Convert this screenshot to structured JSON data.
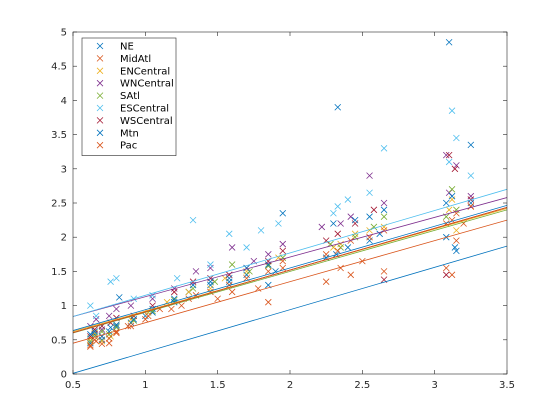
{
  "chart_data": {
    "type": "scatter",
    "title": "",
    "xlabel": "",
    "ylabel": "",
    "xlim": [
      0.5,
      3.5
    ],
    "ylim": [
      0,
      5
    ],
    "xticks": [
      0.5,
      1,
      1.5,
      2,
      2.5,
      3,
      3.5
    ],
    "yticks": [
      0,
      0.5,
      1,
      1.5,
      2,
      2.5,
      3,
      3.5,
      4,
      4.5,
      5
    ],
    "xtick_labels": [
      "0.5",
      "1",
      "1.5",
      "2",
      "2.5",
      "3",
      "3.5"
    ],
    "ytick_labels": [
      "0",
      "0.5",
      "1",
      "1.5",
      "2",
      "2.5",
      "3",
      "3.5",
      "4",
      "4.5",
      "5"
    ],
    "grid": false,
    "legend_position": "top-left",
    "marker": "x",
    "series": [
      {
        "name": "NE",
        "color": "#0072BD",
        "points": [
          [
            0.62,
            0.45
          ],
          [
            0.65,
            0.58
          ],
          [
            0.7,
            0.5
          ],
          [
            0.75,
            0.62
          ],
          [
            0.8,
            0.7
          ],
          [
            0.82,
            1.12
          ],
          [
            0.9,
            0.75
          ],
          [
            1.0,
            0.85
          ],
          [
            1.05,
            0.9
          ],
          [
            1.2,
            1.05
          ],
          [
            1.3,
            1.2
          ],
          [
            1.45,
            1.3
          ],
          [
            1.58,
            1.35
          ],
          [
            1.7,
            1.45
          ],
          [
            1.85,
            1.3
          ],
          [
            1.9,
            1.5
          ],
          [
            2.25,
            1.7
          ],
          [
            2.32,
            1.75
          ],
          [
            2.4,
            1.85
          ],
          [
            2.55,
            1.95
          ],
          [
            2.62,
            2.05
          ],
          [
            3.08,
            2.0
          ],
          [
            3.1,
            4.85
          ],
          [
            3.15,
            1.8
          ],
          [
            3.25,
            3.35
          ]
        ],
        "fit": [
          0.62,
          -0.3
        ]
      },
      {
        "name": "MidAtl",
        "color": "#D95319",
        "points": [
          [
            0.62,
            0.4
          ],
          [
            0.66,
            0.48
          ],
          [
            0.7,
            0.55
          ],
          [
            0.75,
            0.45
          ],
          [
            0.8,
            0.62
          ],
          [
            0.88,
            0.7
          ],
          [
            1.0,
            0.8
          ],
          [
            1.1,
            0.95
          ],
          [
            1.25,
            1.0
          ],
          [
            1.35,
            1.15
          ],
          [
            1.5,
            1.1
          ],
          [
            1.6,
            1.2
          ],
          [
            1.78,
            1.25
          ],
          [
            1.85,
            1.05
          ],
          [
            1.95,
            1.55
          ],
          [
            2.25,
            1.35
          ],
          [
            2.35,
            1.55
          ],
          [
            2.42,
            1.45
          ],
          [
            2.5,
            1.65
          ],
          [
            2.65,
            1.5
          ],
          [
            3.08,
            1.55
          ],
          [
            3.12,
            1.45
          ],
          [
            3.15,
            1.95
          ],
          [
            3.2,
            2.2
          ],
          [
            3.25,
            2.45
          ]
        ],
        "fit": [
          0.6,
          0.15
        ]
      },
      {
        "name": "ENCentral",
        "color": "#EDB120",
        "points": [
          [
            0.62,
            0.52
          ],
          [
            0.65,
            0.6
          ],
          [
            0.7,
            0.48
          ],
          [
            0.76,
            0.55
          ],
          [
            0.8,
            0.72
          ],
          [
            0.9,
            0.8
          ],
          [
            1.02,
            0.9
          ],
          [
            1.15,
            1.05
          ],
          [
            1.3,
            1.2
          ],
          [
            1.45,
            1.25
          ],
          [
            1.55,
            1.4
          ],
          [
            1.7,
            1.5
          ],
          [
            1.85,
            1.6
          ],
          [
            1.92,
            1.7
          ],
          [
            2.3,
            1.85
          ],
          [
            2.35,
            1.9
          ],
          [
            2.45,
            2.05
          ],
          [
            2.55,
            2.1
          ],
          [
            2.65,
            2.15
          ],
          [
            3.1,
            2.4
          ],
          [
            3.12,
            2.55
          ],
          [
            3.15,
            2.1
          ]
        ],
        "fit": [
          0.6,
          0.32
        ]
      },
      {
        "name": "WNCentral",
        "color": "#7E2F8E",
        "points": [
          [
            0.62,
            0.7
          ],
          [
            0.66,
            0.8
          ],
          [
            0.7,
            0.65
          ],
          [
            0.75,
            0.85
          ],
          [
            0.8,
            0.95
          ],
          [
            0.9,
            1.0
          ],
          [
            1.05,
            1.1
          ],
          [
            1.2,
            1.25
          ],
          [
            1.35,
            1.5
          ],
          [
            1.45,
            1.55
          ],
          [
            1.6,
            1.85
          ],
          [
            1.75,
            1.65
          ],
          [
            1.85,
            1.75
          ],
          [
            1.95,
            1.9
          ],
          [
            2.22,
            2.15
          ],
          [
            2.35,
            2.2
          ],
          [
            2.42,
            2.3
          ],
          [
            2.55,
            2.9
          ],
          [
            2.65,
            2.5
          ],
          [
            3.08,
            3.2
          ],
          [
            3.1,
            2.65
          ],
          [
            3.15,
            3.05
          ],
          [
            3.25,
            2.6
          ]
        ],
        "fit": [
          0.58,
          0.55
        ]
      },
      {
        "name": "SAtl",
        "color": "#77AC30",
        "points": [
          [
            0.62,
            0.48
          ],
          [
            0.65,
            0.55
          ],
          [
            0.7,
            0.62
          ],
          [
            0.75,
            0.58
          ],
          [
            0.8,
            0.68
          ],
          [
            0.92,
            0.78
          ],
          [
            1.05,
            0.92
          ],
          [
            1.2,
            1.08
          ],
          [
            1.33,
            1.25
          ],
          [
            1.48,
            1.35
          ],
          [
            1.6,
            1.6
          ],
          [
            1.72,
            1.5
          ],
          [
            1.85,
            1.58
          ],
          [
            1.95,
            1.7
          ],
          [
            2.28,
            1.9
          ],
          [
            2.35,
            1.85
          ],
          [
            2.45,
            2.0
          ],
          [
            2.58,
            2.15
          ],
          [
            2.65,
            2.3
          ],
          [
            3.08,
            2.3
          ],
          [
            3.12,
            2.7
          ],
          [
            3.15,
            2.4
          ]
        ],
        "fit": [
          0.6,
          0.3
        ]
      },
      {
        "name": "ESCentral",
        "color": "#4DBEEE",
        "points": [
          [
            0.62,
            1.0
          ],
          [
            0.66,
            0.85
          ],
          [
            0.7,
            0.7
          ],
          [
            0.76,
            1.35
          ],
          [
            0.8,
            1.4
          ],
          [
            0.92,
            1.1
          ],
          [
            1.05,
            1.15
          ],
          [
            1.22,
            1.4
          ],
          [
            1.33,
            2.25
          ],
          [
            1.45,
            1.6
          ],
          [
            1.58,
            2.05
          ],
          [
            1.7,
            1.85
          ],
          [
            1.8,
            2.1
          ],
          [
            1.92,
            2.2
          ],
          [
            2.3,
            2.35
          ],
          [
            2.33,
            2.45
          ],
          [
            2.4,
            2.55
          ],
          [
            2.55,
            2.65
          ],
          [
            2.65,
            3.3
          ],
          [
            3.1,
            3.1
          ],
          [
            3.12,
            3.85
          ],
          [
            3.15,
            3.45
          ],
          [
            3.25,
            2.9
          ]
        ],
        "fit": [
          0.62,
          0.53
        ]
      },
      {
        "name": "WSCentral",
        "color": "#A2142F",
        "points": [
          [
            0.62,
            0.55
          ],
          [
            0.65,
            0.65
          ],
          [
            0.7,
            0.7
          ],
          [
            0.76,
            0.75
          ],
          [
            0.8,
            0.82
          ],
          [
            0.92,
            0.85
          ],
          [
            1.05,
            1.0
          ],
          [
            1.2,
            1.2
          ],
          [
            1.33,
            1.35
          ],
          [
            1.45,
            1.4
          ],
          [
            1.58,
            1.45
          ],
          [
            1.7,
            1.55
          ],
          [
            1.85,
            1.65
          ],
          [
            1.95,
            1.8
          ],
          [
            2.25,
            1.95
          ],
          [
            2.33,
            2.05
          ],
          [
            2.45,
            2.2
          ],
          [
            2.58,
            2.4
          ],
          [
            2.65,
            1.38
          ],
          [
            3.08,
            1.45
          ],
          [
            3.1,
            3.2
          ],
          [
            3.14,
            3.0
          ],
          [
            3.25,
            2.55
          ]
        ],
        "fit": [
          0.61,
          0.3
        ]
      },
      {
        "name": "Mtn",
        "color": "#0072BD",
        "points": [
          [
            0.62,
            0.58
          ],
          [
            0.65,
            0.62
          ],
          [
            0.7,
            0.55
          ],
          [
            0.76,
            0.68
          ],
          [
            0.8,
            0.72
          ],
          [
            0.92,
            0.8
          ],
          [
            1.05,
            0.95
          ],
          [
            1.2,
            1.1
          ],
          [
            1.33,
            1.3
          ],
          [
            1.45,
            1.35
          ],
          [
            1.58,
            1.4
          ],
          [
            1.7,
            1.55
          ],
          [
            1.85,
            1.6
          ],
          [
            1.95,
            2.35
          ],
          [
            2.3,
            2.2
          ],
          [
            2.33,
            3.9
          ],
          [
            2.45,
            2.25
          ],
          [
            2.55,
            2.3
          ],
          [
            2.65,
            2.4
          ],
          [
            3.08,
            2.5
          ],
          [
            3.12,
            2.6
          ],
          [
            3.14,
            1.85
          ],
          [
            3.25,
            2.5
          ]
        ],
        "fit": [
          0.61,
          0.33
        ]
      },
      {
        "name": "Pac",
        "color": "#D95319",
        "points": [
          [
            0.62,
            0.42
          ],
          [
            0.65,
            0.5
          ],
          [
            0.7,
            0.44
          ],
          [
            0.75,
            0.52
          ],
          [
            0.8,
            0.6
          ],
          [
            0.9,
            0.7
          ],
          [
            1.02,
            0.85
          ],
          [
            1.18,
            0.95
          ],
          [
            1.3,
            1.1
          ],
          [
            1.45,
            1.2
          ],
          [
            1.58,
            1.3
          ],
          [
            1.7,
            1.4
          ],
          [
            1.85,
            1.5
          ],
          [
            1.95,
            1.65
          ],
          [
            2.25,
            1.75
          ],
          [
            2.33,
            1.8
          ],
          [
            2.42,
            1.95
          ],
          [
            2.55,
            2.0
          ],
          [
            2.65,
            2.1
          ],
          [
            3.08,
            2.2
          ],
          [
            3.12,
            2.25
          ],
          [
            3.15,
            2.35
          ],
          [
            3.25,
            2.45
          ]
        ],
        "fit": [
          0.61,
          0.3
        ]
      }
    ]
  }
}
